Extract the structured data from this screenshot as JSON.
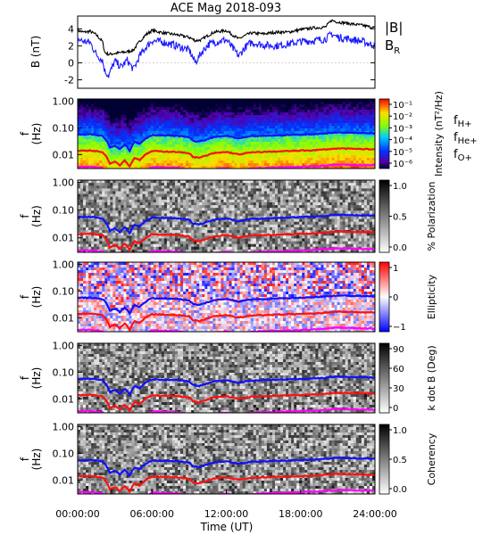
{
  "title": "ACE Mag 2018-093",
  "xlabel": "Time (UT)",
  "x_ticks": [
    "00:00:00",
    "06:00:00",
    "12:00:00",
    "18:00:00",
    "24:00:00"
  ],
  "colors": {
    "B_total": "#000000",
    "B_R": "#1a1aff",
    "f_H": "#1010ff",
    "f_He": "#ff1010",
    "f_O": "#ff00ff"
  },
  "chart_data": [
    {
      "type": "line",
      "ylabel": "B (nT)",
      "ylim": [
        -3,
        5.5
      ],
      "yticks": [
        "-2",
        "0",
        "2",
        "4"
      ],
      "legend": [
        "|B|",
        "B",
        "R"
      ],
      "x_hours": [
        0,
        0.5,
        1,
        1.5,
        2,
        2.2,
        2.5,
        3,
        3.5,
        4,
        4.5,
        5,
        5.5,
        6,
        7,
        8,
        9,
        9.5,
        10,
        10.5,
        11,
        12,
        13,
        13.5,
        14,
        15,
        16,
        17,
        18,
        19,
        20,
        20.5,
        21,
        22,
        23,
        24
      ],
      "series": [
        {
          "name": "|B|",
          "values": [
            3.8,
            3.6,
            3.7,
            3.3,
            2.5,
            1.2,
            1.0,
            1.1,
            1.2,
            1.3,
            1.5,
            2.5,
            3.3,
            3.8,
            3.5,
            3.3,
            3.0,
            2.6,
            2.7,
            3.2,
            3.6,
            3.8,
            2.8,
            3.2,
            3.5,
            3.4,
            3.6,
            3.6,
            3.9,
            4.1,
            4.2,
            5.0,
            4.8,
            4.6,
            4.4,
            4.1
          ]
        },
        {
          "name": "B_R",
          "values": [
            2.8,
            2.5,
            2.4,
            1.0,
            0.3,
            -1.0,
            -1.5,
            0.2,
            -0.5,
            0.3,
            -0.8,
            0.8,
            1.8,
            2.6,
            2.4,
            2.0,
            1.5,
            0.0,
            1.2,
            2.1,
            2.4,
            2.7,
            0.8,
            1.8,
            2.4,
            2.1,
            2.0,
            2.2,
            2.5,
            2.6,
            2.8,
            3.4,
            3.0,
            2.8,
            2.5,
            2.0
          ]
        }
      ]
    },
    {
      "type": "heatmap",
      "ylabel": "f (Hz)",
      "yticks": [
        "1.00",
        "0.10",
        "0.01"
      ],
      "cbar_label": "Intensity (nT²/Hz)",
      "cbar_ticks": [
        "10⁻¹",
        "10⁻²",
        "10⁻³",
        "10⁻⁴",
        "10⁻⁵",
        "10⁻⁶"
      ],
      "legend": [
        "f",
        "H+",
        "f",
        "He+",
        "f",
        "O+"
      ]
    },
    {
      "type": "heatmap",
      "ylabel": "f (Hz)",
      "yticks": [
        "1.00",
        "0.10",
        "0.01"
      ],
      "cbar_label": "% Polarization",
      "cbar_ticks": [
        "1.0",
        "0.5",
        "0.0"
      ]
    },
    {
      "type": "heatmap",
      "ylabel": "f (Hz)",
      "yticks": [
        "1.00",
        "0.10",
        "0.01"
      ],
      "cbar_label": "Ellipticity",
      "cbar_ticks": [
        "1",
        "0",
        "−1"
      ]
    },
    {
      "type": "heatmap",
      "ylabel": "f (Hz)",
      "yticks": [
        "1.00",
        "0.10",
        "0.01"
      ],
      "cbar_label": "k dot B (Deg)",
      "cbar_ticks": [
        "90",
        "60",
        "30",
        "0"
      ]
    },
    {
      "type": "heatmap",
      "ylabel": "f (Hz)",
      "yticks": [
        "1.00",
        "0.10",
        "0.01"
      ],
      "cbar_label": "Coherency",
      "cbar_ticks": [
        "1.0",
        "0.5",
        "0.0"
      ]
    }
  ],
  "gyro_lines": {
    "x_hours": [
      0,
      1,
      2,
      2.3,
      2.6,
      3,
      3.4,
      3.8,
      4.2,
      4.6,
      5,
      5.5,
      6,
      7,
      8,
      9,
      9.3,
      9.8,
      10.5,
      11,
      12,
      13,
      13.5,
      14,
      15,
      16,
      17,
      18,
      19,
      20,
      21,
      22,
      23,
      24
    ],
    "f_H": [
      0.055,
      0.057,
      0.05,
      0.035,
      0.018,
      0.022,
      0.016,
      0.024,
      0.014,
      0.03,
      0.025,
      0.04,
      0.054,
      0.052,
      0.05,
      0.045,
      0.033,
      0.03,
      0.038,
      0.045,
      0.05,
      0.04,
      0.044,
      0.048,
      0.05,
      0.052,
      0.054,
      0.056,
      0.058,
      0.062,
      0.068,
      0.066,
      0.064,
      0.063
    ]
  }
}
